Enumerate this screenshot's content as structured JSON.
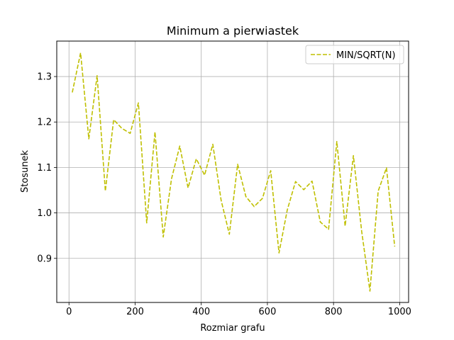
{
  "chart_data": {
    "type": "line",
    "title": "Minimum a pierwiastek",
    "xlabel": "Rozmiar grafu",
    "ylabel": "Stosunek",
    "xlim": [
      -37,
      1027
    ],
    "ylim": [
      0.803,
      1.378
    ],
    "xticks": [
      0,
      200,
      400,
      600,
      800,
      1000
    ],
    "yticks": [
      0.9,
      1.0,
      1.1,
      1.2,
      1.3
    ],
    "ytick_labels": [
      "0.9",
      "1.0",
      "1.1",
      "1.2",
      "1.3"
    ],
    "grid": true,
    "legend_position": "top-right",
    "series": [
      {
        "name": "MIN/SQRT(N)",
        "color": "#bfbf00",
        "line_style": "dashed",
        "x": [
          10,
          35,
          60,
          85,
          110,
          135,
          160,
          185,
          210,
          235,
          260,
          285,
          310,
          335,
          360,
          385,
          410,
          435,
          460,
          485,
          510,
          535,
          560,
          585,
          610,
          635,
          660,
          685,
          710,
          735,
          760,
          785,
          810,
          835,
          860,
          885,
          910,
          935,
          960,
          985
        ],
        "y": [
          1.265,
          1.352,
          1.163,
          1.302,
          1.048,
          1.205,
          1.186,
          1.175,
          1.242,
          0.978,
          1.178,
          0.947,
          1.075,
          1.147,
          1.055,
          1.119,
          1.083,
          1.151,
          1.028,
          0.953,
          1.107,
          1.036,
          1.014,
          1.032,
          1.093,
          0.912,
          1.006,
          1.069,
          1.051,
          1.07,
          0.98,
          0.964,
          1.157,
          0.971,
          1.126,
          0.96,
          0.828,
          1.048,
          1.099,
          0.926
        ]
      }
    ]
  }
}
